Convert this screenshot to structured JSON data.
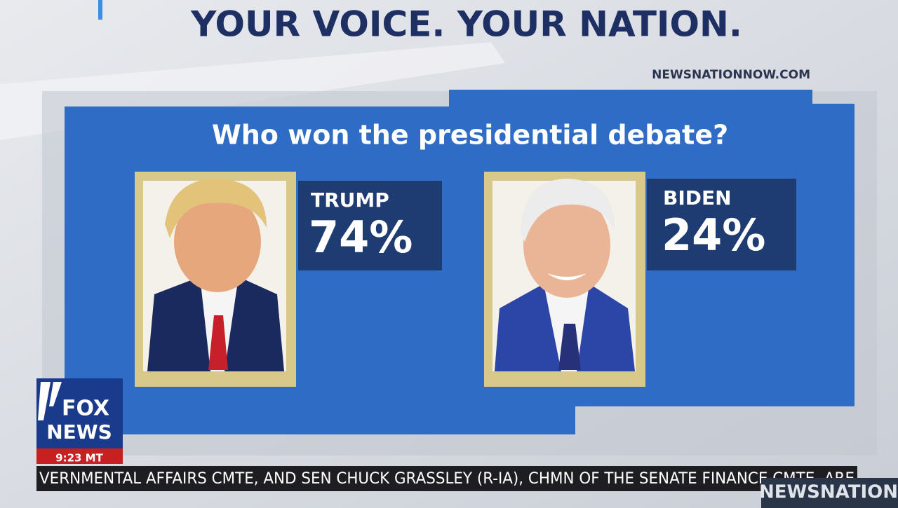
{
  "header": {
    "title": "YOUR VOICE. YOUR NATION.",
    "url": "NEWSNATIONNOW.COM"
  },
  "poll": {
    "question": "Who won the presidential debate?",
    "candidates": [
      {
        "name": "TRUMP",
        "result": "74%"
      },
      {
        "name": "BIDEN",
        "result": "24%"
      }
    ]
  },
  "logo": {
    "line1": "FOX",
    "line2": "NEWS",
    "time": "9:23 MT"
  },
  "ticker": {
    "text": "VERNMENTAL AFFAIRS CMTE, AND SEN CHUCK GRASSLEY (R-IA), CHMN OF THE SENATE FINANCE CMTE, ARE",
    "corner": "NEWSNATION"
  }
}
